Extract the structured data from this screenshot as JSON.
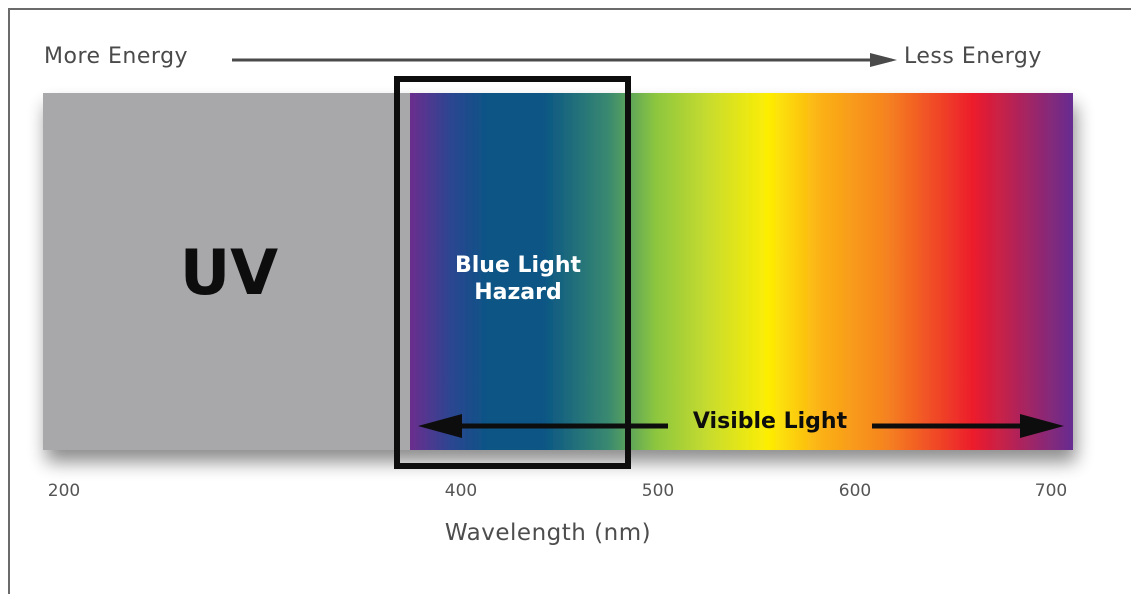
{
  "energy_axis": {
    "left_label": "More Energy",
    "right_label": "Less Energy"
  },
  "regions": {
    "uv_label": "UV",
    "hazard_label_line1": "Blue Light",
    "hazard_label_line2": "Hazard",
    "visible_label": "Visible Light"
  },
  "wavelength_axis": {
    "title": "Wavelength (nm)",
    "ticks": [
      "200",
      "400",
      "500",
      "600",
      "700"
    ]
  },
  "colors": {
    "uv_gray": "#a8a8ab",
    "violet": "#6b2d8e",
    "blue": "#0a5585",
    "green": "#8cc63f",
    "yellow": "#fdee04",
    "orange": "#f58220",
    "red": "#ec1c2c",
    "purple_end": "#662d91"
  }
}
